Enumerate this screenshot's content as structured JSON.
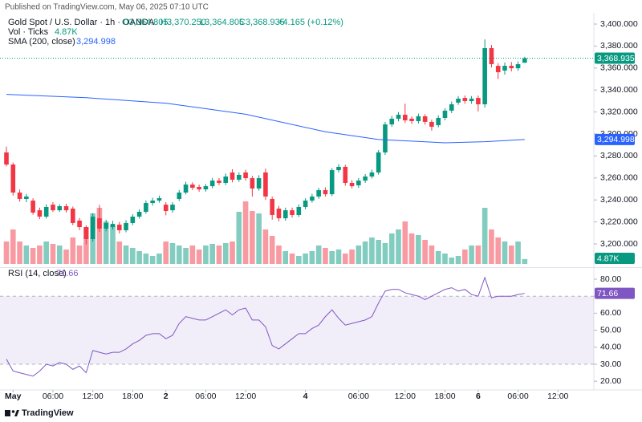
{
  "chart_data": {
    "type": "candlestick",
    "published": "Published on TradingView.com, May 06, 2025 07:10 UTC",
    "legend": {
      "symbol": "Gold Spot / U.S. Dollar · 1h · OANDA",
      "open": "O3,364.805",
      "high": "H3,370.250",
      "low": "L3,364.805",
      "close": "C3,368.935",
      "change": "+4.165 (+0.12%)"
    },
    "footer": "TradingView",
    "up_color": "#089981",
    "down_color": "#f23645",
    "grid": false,
    "ylim": [
      3180,
      3410
    ],
    "yticks": [
      {
        "value": 3200,
        "label": "3,200.000"
      },
      {
        "value": 3220,
        "label": "3,220.000"
      },
      {
        "value": 3240,
        "label": "3,240.000"
      },
      {
        "value": 3260,
        "label": "3,260.000"
      },
      {
        "value": 3280,
        "label": "3,280.000"
      },
      {
        "value": 3300,
        "label": "3,300.000"
      },
      {
        "value": 3320,
        "label": "3,320.000"
      },
      {
        "value": 3340,
        "label": "3,340.000"
      },
      {
        "value": 3360,
        "label": "3,360.000"
      },
      {
        "value": 3380,
        "label": "3,380.000"
      },
      {
        "value": 3400,
        "label": "3,400.000"
      }
    ],
    "xticks": [
      {
        "value": 1,
        "label": "May"
      },
      {
        "value": 7,
        "label": "06:00"
      },
      {
        "value": 13,
        "label": "12:00"
      },
      {
        "value": 19,
        "label": "18:00"
      },
      {
        "value": 24,
        "label": "2"
      },
      {
        "value": 30,
        "label": "06:00"
      },
      {
        "value": 36,
        "label": "12:00"
      },
      {
        "value": 45,
        "label": "4"
      },
      {
        "value": 53,
        "label": "06:00"
      },
      {
        "value": 60,
        "label": "12:00"
      },
      {
        "value": 66,
        "label": "18:00"
      },
      {
        "value": 71,
        "label": "6"
      },
      {
        "value": 77,
        "label": "06:00"
      },
      {
        "value": 83,
        "label": "12:00"
      }
    ],
    "price_tag": {
      "value": 3368.935,
      "label": "3,368.935"
    },
    "candles": [
      {
        "open": 3283.2,
        "high": 3288.5,
        "low": 3270.5,
        "close": 3272.2
      },
      {
        "open": 3272.2,
        "high": 3274.0,
        "low": 3244.0,
        "close": 3246.7
      },
      {
        "open": 3246.7,
        "high": 3249.5,
        "low": 3238.5,
        "close": 3240.9
      },
      {
        "open": 3240.9,
        "high": 3245.5,
        "low": 3238.0,
        "close": 3243.1
      },
      {
        "open": 3239.4,
        "high": 3241.5,
        "low": 3226.5,
        "close": 3228.5
      },
      {
        "open": 3230.6,
        "high": 3233.0,
        "low": 3222.5,
        "close": 3224.8
      },
      {
        "open": 3224.8,
        "high": 3236.0,
        "low": 3223.0,
        "close": 3233.6
      },
      {
        "open": 3235.7,
        "high": 3238.0,
        "low": 3229.0,
        "close": 3230.6
      },
      {
        "open": 3230.6,
        "high": 3236.0,
        "low": 3229.0,
        "close": 3234.3
      },
      {
        "open": 3234.3,
        "high": 3236.5,
        "low": 3228.5,
        "close": 3230.6
      },
      {
        "open": 3232.1,
        "high": 3234.0,
        "low": 3217.0,
        "close": 3219.0
      },
      {
        "open": 3221.2,
        "high": 3223.5,
        "low": 3212.5,
        "close": 3215.3
      },
      {
        "open": 3215.3,
        "high": 3217.0,
        "low": 3199.5,
        "close": 3204.4
      },
      {
        "open": 3204.4,
        "high": 3228.0,
        "low": 3202.0,
        "close": 3224.8
      },
      {
        "open": 3223.3,
        "high": 3235.5,
        "low": 3211.0,
        "close": 3213.9
      },
      {
        "open": 3213.9,
        "high": 3222.0,
        "low": 3211.5,
        "close": 3219.0
      },
      {
        "open": 3215.3,
        "high": 3221.0,
        "low": 3213.0,
        "close": 3218.2
      },
      {
        "open": 3217.5,
        "high": 3220.0,
        "low": 3209.5,
        "close": 3212.4
      },
      {
        "open": 3212.4,
        "high": 3221.5,
        "low": 3210.5,
        "close": 3219.0
      },
      {
        "open": 3219.0,
        "high": 3227.0,
        "low": 3217.0,
        "close": 3224.8
      },
      {
        "open": 3224.8,
        "high": 3231.5,
        "low": 3223.0,
        "close": 3229.2
      },
      {
        "open": 3229.2,
        "high": 3239.5,
        "low": 3227.5,
        "close": 3237.2
      },
      {
        "open": 3237.2,
        "high": 3242.0,
        "low": 3235.0,
        "close": 3239.4
      },
      {
        "open": 3239.4,
        "high": 3244.0,
        "low": 3237.5,
        "close": 3241.6
      },
      {
        "open": 3235.7,
        "high": 3238.0,
        "low": 3226.0,
        "close": 3229.9
      },
      {
        "open": 3230.6,
        "high": 3238.0,
        "low": 3228.5,
        "close": 3235.7
      },
      {
        "open": 3240.9,
        "high": 3249.0,
        "low": 3239.0,
        "close": 3246.7
      },
      {
        "open": 3246.7,
        "high": 3256.5,
        "low": 3245.0,
        "close": 3254.0
      },
      {
        "open": 3254.0,
        "high": 3256.0,
        "low": 3249.0,
        "close": 3251.1
      },
      {
        "open": 3251.8,
        "high": 3254.0,
        "low": 3247.5,
        "close": 3249.6
      },
      {
        "open": 3249.6,
        "high": 3254.5,
        "low": 3247.5,
        "close": 3252.5
      },
      {
        "open": 3252.5,
        "high": 3260.0,
        "low": 3250.5,
        "close": 3257.6
      },
      {
        "open": 3257.6,
        "high": 3260.0,
        "low": 3253.5,
        "close": 3255.5
      },
      {
        "open": 3255.5,
        "high": 3264.0,
        "low": 3253.5,
        "close": 3261.3
      },
      {
        "open": 3265.0,
        "high": 3268.0,
        "low": 3256.0,
        "close": 3258.4
      },
      {
        "open": 3258.4,
        "high": 3265.0,
        "low": 3256.5,
        "close": 3262.8
      },
      {
        "open": 3265.0,
        "high": 3267.5,
        "low": 3257.5,
        "close": 3259.8
      },
      {
        "open": 3259.8,
        "high": 3262.0,
        "low": 3243.0,
        "close": 3250.4
      },
      {
        "open": 3250.4,
        "high": 3262.5,
        "low": 3248.5,
        "close": 3259.8
      },
      {
        "open": 3265.0,
        "high": 3268.5,
        "low": 3240.0,
        "close": 3243.1
      },
      {
        "open": 3240.9,
        "high": 3243.0,
        "low": 3222.0,
        "close": 3226.3
      },
      {
        "open": 3232.1,
        "high": 3234.5,
        "low": 3220.5,
        "close": 3223.3
      },
      {
        "open": 3223.3,
        "high": 3233.0,
        "low": 3221.0,
        "close": 3230.6
      },
      {
        "open": 3230.6,
        "high": 3233.0,
        "low": 3224.0,
        "close": 3226.3
      },
      {
        "open": 3226.3,
        "high": 3236.0,
        "low": 3224.5,
        "close": 3233.6
      },
      {
        "open": 3233.6,
        "high": 3241.5,
        "low": 3231.5,
        "close": 3239.4
      },
      {
        "open": 3239.4,
        "high": 3245.5,
        "low": 3237.5,
        "close": 3243.1
      },
      {
        "open": 3243.1,
        "high": 3251.0,
        "low": 3241.0,
        "close": 3248.9
      },
      {
        "open": 3248.9,
        "high": 3251.5,
        "low": 3243.0,
        "close": 3245.2
      },
      {
        "open": 3245.2,
        "high": 3269.0,
        "low": 3243.5,
        "close": 3267.1
      },
      {
        "open": 3267.1,
        "high": 3272.5,
        "low": 3265.0,
        "close": 3270.1
      },
      {
        "open": 3270.1,
        "high": 3272.0,
        "low": 3253.0,
        "close": 3255.5
      },
      {
        "open": 3255.5,
        "high": 3258.0,
        "low": 3250.5,
        "close": 3252.5
      },
      {
        "open": 3253.3,
        "high": 3260.0,
        "low": 3251.0,
        "close": 3257.6
      },
      {
        "open": 3257.6,
        "high": 3263.5,
        "low": 3255.5,
        "close": 3261.3
      },
      {
        "open": 3261.3,
        "high": 3267.5,
        "low": 3259.5,
        "close": 3265.0
      },
      {
        "open": 3265.0,
        "high": 3285.5,
        "low": 3263.0,
        "close": 3283.2
      },
      {
        "open": 3283.2,
        "high": 3311.0,
        "low": 3281.0,
        "close": 3308.7
      },
      {
        "open": 3308.7,
        "high": 3316.5,
        "low": 3306.5,
        "close": 3313.9
      },
      {
        "open": 3313.9,
        "high": 3320.0,
        "low": 3311.5,
        "close": 3317.5
      },
      {
        "open": 3317.5,
        "high": 3327.5,
        "low": 3310.0,
        "close": 3312.4
      },
      {
        "open": 3313.9,
        "high": 3316.0,
        "low": 3309.0,
        "close": 3311.7
      },
      {
        "open": 3311.7,
        "high": 3318.5,
        "low": 3309.5,
        "close": 3316.1
      },
      {
        "open": 3316.1,
        "high": 3318.0,
        "low": 3308.5,
        "close": 3311.0
      },
      {
        "open": 3311.0,
        "high": 3313.0,
        "low": 3303.0,
        "close": 3306.6
      },
      {
        "open": 3308.0,
        "high": 3317.0,
        "low": 3306.0,
        "close": 3314.6
      },
      {
        "open": 3314.6,
        "high": 3323.5,
        "low": 3312.5,
        "close": 3321.2
      },
      {
        "open": 3321.2,
        "high": 3329.5,
        "low": 3319.0,
        "close": 3327.0
      },
      {
        "open": 3328.5,
        "high": 3334.5,
        "low": 3326.5,
        "close": 3332.1
      },
      {
        "open": 3332.8,
        "high": 3335.0,
        "low": 3327.5,
        "close": 3329.9
      },
      {
        "open": 3329.9,
        "high": 3334.5,
        "low": 3327.5,
        "close": 3332.1
      },
      {
        "open": 3332.8,
        "high": 3335.0,
        "low": 3320.5,
        "close": 3327.0
      },
      {
        "open": 3327.0,
        "high": 3386.0,
        "low": 3324.0,
        "close": 3378.1
      },
      {
        "open": 3378.1,
        "high": 3381.0,
        "low": 3360.5,
        "close": 3363.5
      },
      {
        "open": 3362.0,
        "high": 3364.5,
        "low": 3350.0,
        "close": 3356.2
      },
      {
        "open": 3357.7,
        "high": 3365.0,
        "low": 3354.0,
        "close": 3362.0
      },
      {
        "open": 3362.0,
        "high": 3365.5,
        "low": 3357.0,
        "close": 3359.8
      },
      {
        "open": 3359.8,
        "high": 3366.0,
        "low": 3357.5,
        "close": 3363.5
      },
      {
        "open": 3364.805,
        "high": 3370.25,
        "low": 3364.805,
        "close": 3368.935
      }
    ],
    "volume": {
      "name": "Vol · Ticks",
      "tag": {
        "value": 4.87,
        "label": "4.87K"
      },
      "values": [
        22.4,
        34.4,
        22.4,
        18.4,
        16,
        18.4,
        22.4,
        20,
        18.4,
        14.4,
        26.4,
        18.4,
        36.8,
        50.4,
        56,
        42.4,
        38.4,
        22.4,
        18.4,
        16,
        12.8,
        10.4,
        8,
        10.4,
        22.4,
        20.8,
        18.4,
        16,
        18.4,
        14.4,
        18.4,
        20,
        18.4,
        20.8,
        22.4,
        52,
        62.4,
        52.8,
        50.4,
        34.4,
        28,
        18.4,
        12.8,
        10.4,
        8,
        10.4,
        12.8,
        18.4,
        16,
        12.8,
        14.4,
        10.4,
        14.4,
        18.4,
        22.4,
        26.4,
        24,
        20.8,
        30.4,
        34.4,
        42.4,
        30.4,
        28.8,
        24,
        18.4,
        12.8,
        10.4,
        6.4,
        8,
        14.4,
        18.4,
        18.4,
        56,
        34.4,
        26.4,
        22.4,
        18.4,
        22.4,
        4.87
      ]
    },
    "sma": {
      "name": "SMA (200, close)",
      "color": "#2962ff",
      "tag": {
        "value": 3294.998,
        "label": "3,294.998"
      },
      "x": [
        0,
        12,
        24,
        36,
        48,
        56,
        66,
        72,
        78
      ],
      "values": [
        3336,
        3333,
        3328,
        3318,
        3302,
        3295,
        3292,
        3293,
        3294.998
      ]
    },
    "rsi": {
      "name": "RSI (14, close)",
      "color": "#7e57c2",
      "band": [
        30,
        70
      ],
      "ylim": [
        15,
        85
      ],
      "yticks": [
        {
          "value": 20,
          "label": "20.00"
        },
        {
          "value": 30,
          "label": "30.00"
        },
        {
          "value": 40,
          "label": "40.00"
        },
        {
          "value": 50,
          "label": "50.00"
        },
        {
          "value": 60,
          "label": "60.00"
        },
        {
          "value": 70,
          "label": "70.00"
        },
        {
          "value": 80,
          "label": "80.00"
        }
      ],
      "values": [
        33,
        26,
        25,
        24,
        23,
        26,
        30,
        29,
        31,
        30,
        27,
        29,
        25,
        38,
        37,
        36,
        37,
        37,
        39,
        42,
        44,
        47,
        48,
        48,
        45,
        47,
        54,
        58,
        57,
        56,
        56,
        58,
        60,
        62,
        59,
        62,
        63,
        56,
        56,
        52,
        41,
        39,
        42,
        45,
        48,
        48,
        51,
        53,
        58,
        62,
        57,
        53,
        54,
        55,
        56,
        58,
        66,
        73,
        74,
        74,
        72,
        71,
        70,
        68,
        70,
        72,
        74,
        75,
        73,
        74,
        71,
        70,
        81,
        69,
        70,
        70,
        70,
        71,
        71.66
      ]
    }
  }
}
